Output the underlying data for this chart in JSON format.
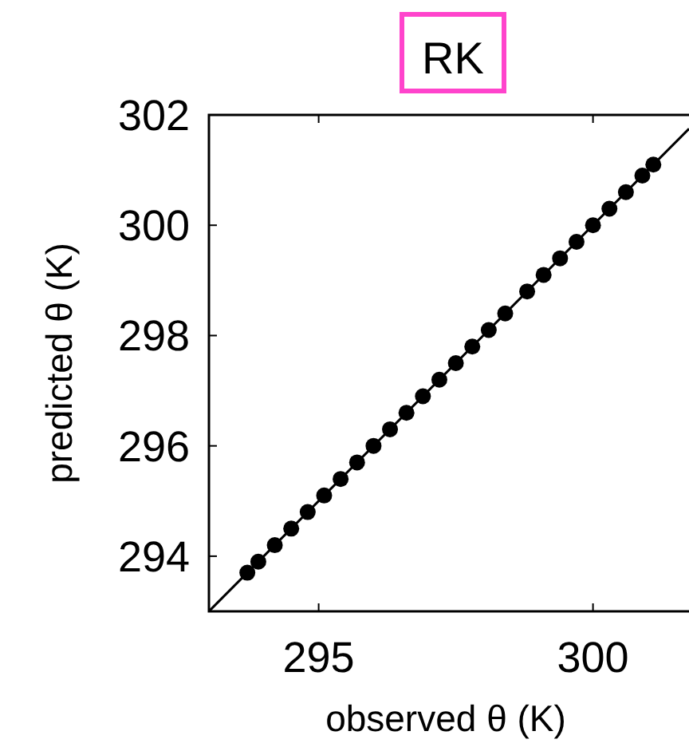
{
  "chart_data": {
    "type": "scatter",
    "title": "RK",
    "xlabel": "observed θ (K)",
    "ylabel": "predicted θ (K)",
    "xlim": [
      293,
      301.75
    ],
    "ylim": [
      293,
      302
    ],
    "xticks": [
      295,
      300
    ],
    "yticks": [
      294,
      296,
      298,
      300,
      302
    ],
    "grid": false,
    "marker": "circle",
    "series": [
      {
        "color": "#000000",
        "x": [
          293.7,
          293.9,
          294.2,
          294.5,
          294.8,
          295.1,
          295.4,
          295.7,
          296.0,
          296.3,
          296.6,
          296.9,
          297.2,
          297.5,
          297.8,
          298.1,
          298.4,
          298.8,
          299.1,
          299.4,
          299.7,
          300.0,
          300.3,
          300.6,
          300.9,
          301.1
        ],
        "values": [
          293.7,
          293.9,
          294.2,
          294.5,
          294.8,
          295.1,
          295.4,
          295.7,
          296.0,
          296.3,
          296.6,
          296.9,
          297.2,
          297.5,
          297.8,
          298.1,
          298.4,
          298.8,
          299.1,
          299.4,
          299.7,
          300.0,
          300.3,
          300.6,
          300.9,
          301.1
        ]
      },
      {
        "type": "line",
        "marker": "none",
        "color": "#000000",
        "x": [
          293,
          301.75
        ],
        "values": [
          293,
          301.75
        ]
      }
    ]
  }
}
